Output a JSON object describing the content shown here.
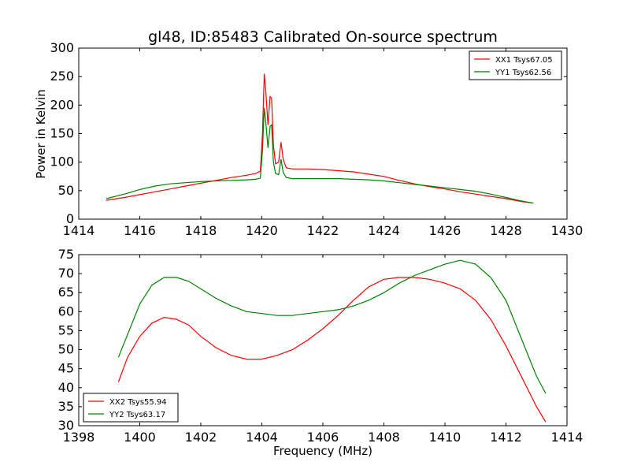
{
  "chart_data": [
    {
      "type": "line",
      "title": "gl48, ID:85483 Calibrated On-source spectrum",
      "xlabel": "",
      "ylabel": "Power in Kelvin",
      "xlim": [
        1414,
        1430
      ],
      "ylim": [
        0,
        300
      ],
      "xticks": [
        1414,
        1416,
        1418,
        1420,
        1422,
        1424,
        1426,
        1428,
        1430
      ],
      "yticks": [
        0,
        50,
        100,
        150,
        200,
        250,
        300
      ],
      "legend_position": "top-right",
      "series": [
        {
          "name": "XX1 Tsys67.05",
          "color": "#ff0000",
          "x": [
            1414.9,
            1415.5,
            1416,
            1416.5,
            1417,
            1417.5,
            1418,
            1418.5,
            1419,
            1419.5,
            1419.8,
            1419.95,
            1420.02,
            1420.08,
            1420.13,
            1420.2,
            1420.27,
            1420.32,
            1420.38,
            1420.45,
            1420.55,
            1420.63,
            1420.7,
            1420.8,
            1421,
            1421.5,
            1422,
            1422.5,
            1423,
            1423.5,
            1424,
            1424.5,
            1425,
            1425.5,
            1426,
            1426.5,
            1427,
            1427.5,
            1428,
            1428.5,
            1428.9
          ],
          "y": [
            33,
            38,
            43,
            48,
            53,
            58,
            63,
            68,
            73,
            77,
            80,
            84,
            150,
            255,
            225,
            165,
            215,
            212,
            130,
            97,
            100,
            135,
            105,
            90,
            88,
            88,
            87,
            85,
            83,
            79,
            75,
            68,
            62,
            57,
            53,
            48,
            44,
            40,
            36,
            31,
            28
          ]
        },
        {
          "name": "YY1 Tsys62.56",
          "color": "#008000",
          "x": [
            1414.9,
            1415.5,
            1416,
            1416.5,
            1417,
            1417.5,
            1418,
            1418.5,
            1419,
            1419.5,
            1419.8,
            1419.95,
            1420.02,
            1420.08,
            1420.13,
            1420.2,
            1420.27,
            1420.32,
            1420.38,
            1420.45,
            1420.55,
            1420.63,
            1420.7,
            1420.8,
            1421,
            1421.5,
            1422,
            1422.5,
            1423,
            1423.5,
            1424,
            1424.5,
            1425,
            1425.5,
            1426,
            1426.5,
            1427,
            1427.5,
            1428,
            1428.5,
            1428.9
          ],
          "y": [
            36,
            44,
            52,
            58,
            62,
            64,
            66,
            67,
            68,
            69,
            70,
            72,
            120,
            195,
            170,
            125,
            163,
            165,
            100,
            80,
            78,
            105,
            82,
            73,
            71,
            71,
            71,
            71,
            70,
            69,
            67,
            64,
            61,
            58,
            55,
            52,
            49,
            44,
            38,
            32,
            28
          ]
        }
      ]
    },
    {
      "type": "line",
      "title": "",
      "xlabel": "Frequency (MHz)",
      "ylabel": "",
      "xlim": [
        1398,
        1414
      ],
      "ylim": [
        30,
        75
      ],
      "xticks": [
        1398,
        1400,
        1402,
        1404,
        1406,
        1408,
        1410,
        1412,
        1414
      ],
      "yticks": [
        30,
        35,
        40,
        45,
        50,
        55,
        60,
        65,
        70,
        75
      ],
      "legend_position": "bottom-left",
      "series": [
        {
          "name": "XX2 Tsys55.94",
          "color": "#ff0000",
          "x": [
            1399.3,
            1399.6,
            1400,
            1400.4,
            1400.8,
            1401.2,
            1401.6,
            1402,
            1402.5,
            1403,
            1403.5,
            1404,
            1404.5,
            1405,
            1405.5,
            1406,
            1406.5,
            1407,
            1407.5,
            1408,
            1408.5,
            1409,
            1409.5,
            1410,
            1410.5,
            1411,
            1411.5,
            1412,
            1412.5,
            1413,
            1413.3
          ],
          "y": [
            41.5,
            48,
            53.5,
            57,
            58.5,
            58,
            56.5,
            53.5,
            50.5,
            48.5,
            47.5,
            47.5,
            48.5,
            50,
            52.5,
            55.5,
            59,
            63,
            66.5,
            68.5,
            69,
            69,
            68.5,
            67.5,
            66,
            63,
            58,
            51,
            43,
            35,
            31
          ]
        },
        {
          "name": "YY2 Tsys63.17",
          "color": "#008000",
          "x": [
            1399.3,
            1399.6,
            1400,
            1400.4,
            1400.8,
            1401.2,
            1401.6,
            1402,
            1402.5,
            1403,
            1403.5,
            1404,
            1404.5,
            1405,
            1405.5,
            1406,
            1406.5,
            1407,
            1407.5,
            1408,
            1408.5,
            1409,
            1409.5,
            1410,
            1410.5,
            1411,
            1411.5,
            1412,
            1412.5,
            1413,
            1413.3
          ],
          "y": [
            48,
            54,
            62,
            67,
            69,
            69,
            68,
            66,
            63.5,
            61.5,
            60,
            59.5,
            59,
            59,
            59.5,
            60,
            60.5,
            61.5,
            63,
            65,
            67.5,
            69.5,
            71,
            72.5,
            73.5,
            72.5,
            69,
            63,
            53,
            43,
            38.5
          ]
        }
      ]
    }
  ]
}
